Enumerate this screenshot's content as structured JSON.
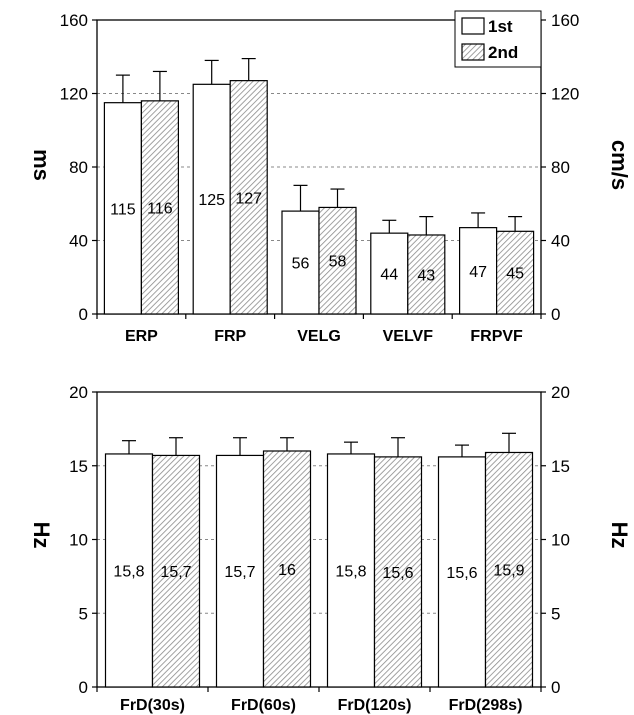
{
  "colors": {
    "first_fill": "#ffffff",
    "hatch_line": "#8a8a8a",
    "gridline": "#888888",
    "axis": "#000000"
  },
  "chart_data": [
    {
      "type": "bar",
      "categories": [
        "ERP",
        "FRP",
        "VELG",
        "VELVF",
        "FRPVF"
      ],
      "series": [
        {
          "name": "1st",
          "values": [
            115,
            125,
            56,
            44,
            47
          ],
          "errors": [
            15,
            13,
            14,
            7,
            8
          ],
          "labels": [
            "115",
            "125",
            "56",
            "44",
            "47"
          ]
        },
        {
          "name": "2nd",
          "values": [
            116,
            127,
            58,
            43,
            45
          ],
          "errors": [
            16,
            12,
            10,
            10,
            8
          ],
          "labels": [
            "116",
            "127",
            "58",
            "43",
            "45"
          ]
        }
      ],
      "ylabel": "ms",
      "y2label": "cm/s",
      "ylim": [
        0,
        160
      ],
      "yticks": [
        "0",
        "40",
        "80",
        "120",
        "160"
      ],
      "ytick_values": [
        0,
        40,
        80,
        120,
        160
      ],
      "y2ticks": [
        "0",
        "40",
        "80",
        "120",
        "160"
      ],
      "grid": true,
      "legend": "top-right"
    },
    {
      "type": "bar",
      "categories": [
        "FrD(30s)",
        "FrD(60s)",
        "FrD(120s)",
        "FrD(298s)"
      ],
      "series": [
        {
          "name": "1st",
          "values": [
            15.8,
            15.7,
            15.8,
            15.6
          ],
          "errors": [
            0.9,
            1.2,
            0.8,
            0.8
          ],
          "labels": [
            "15,8",
            "15,7",
            "15,8",
            "15,6"
          ]
        },
        {
          "name": "2nd",
          "values": [
            15.7,
            16.0,
            15.6,
            15.9
          ],
          "errors": [
            1.2,
            0.9,
            1.3,
            1.3
          ],
          "labels": [
            "15,7",
            "16",
            "15,6",
            "15,9"
          ]
        }
      ],
      "ylabel": "Hz",
      "y2label": "Hz",
      "ylim": [
        0,
        20
      ],
      "yticks": [
        "0",
        "5",
        "10",
        "15",
        "20"
      ],
      "ytick_values": [
        0,
        5,
        10,
        15,
        20
      ],
      "y2ticks": [
        "0",
        "5",
        "10",
        "15",
        "20"
      ],
      "grid": true,
      "legend": "none"
    }
  ]
}
